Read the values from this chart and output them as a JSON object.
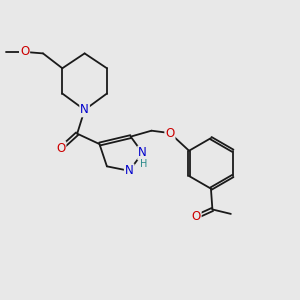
{
  "bg_color": "#e8e8e8",
  "bond_color": "#1a1a1a",
  "bond_width": 1.3,
  "N_color": "#0000cc",
  "O_color": "#cc0000",
  "C_color": "#1a1a1a",
  "H_color": "#2a8a8a",
  "font_size_atom": 8.5,
  "fig_width": 3.0,
  "fig_height": 3.0,
  "dpi": 100,
  "xlim": [
    0,
    10
  ],
  "ylim": [
    0,
    10
  ]
}
